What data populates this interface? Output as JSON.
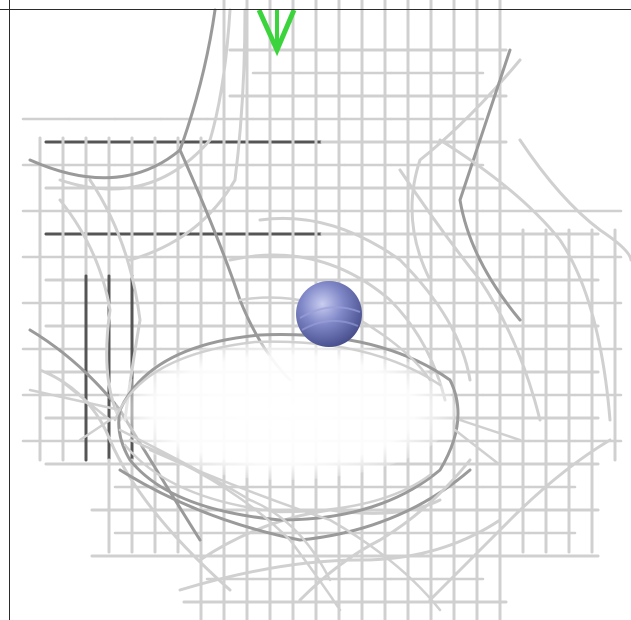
{
  "viewer": {
    "scene": "wireframe-mesh-with-probe-sphere",
    "colors": {
      "background": "#ffffff",
      "mesh_light": "#d0d0d0",
      "mesh_mid": "#9a9a9a",
      "mesh_dark": "#555555",
      "probe_sphere": "#7c86c8",
      "axis_marker": "#33dd33"
    },
    "icons": [
      "probe-sphere-icon",
      "axis-marker-icon"
    ]
  }
}
